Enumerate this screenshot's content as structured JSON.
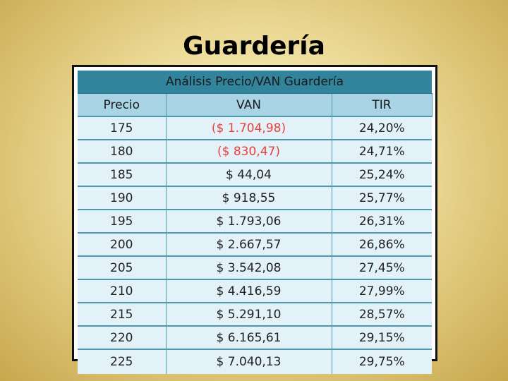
{
  "slide": {
    "title": "Guardería"
  },
  "table": {
    "caption": "Análisis Precio/VAN Guardería",
    "headers": [
      "Precio",
      "VAN",
      "TIR"
    ],
    "rows": [
      {
        "precio": "175",
        "van": "($ 1.704,98)",
        "tir": "24,20%",
        "negative": true
      },
      {
        "precio": "180",
        "van": "($ 830,47)",
        "tir": "24,71%",
        "negative": true
      },
      {
        "precio": "185",
        "van": "$ 44,04",
        "tir": "25,24%",
        "negative": false
      },
      {
        "precio": "190",
        "van": "$ 918,55",
        "tir": "25,77%",
        "negative": false
      },
      {
        "precio": "195",
        "van": "$ 1.793,06",
        "tir": "26,31%",
        "negative": false
      },
      {
        "precio": "200",
        "van": "$ 2.667,57",
        "tir": "26,86%",
        "negative": false
      },
      {
        "precio": "205",
        "van": "$ 3.542,08",
        "tir": "27,45%",
        "negative": false
      },
      {
        "precio": "210",
        "van": "$ 4.416,59",
        "tir": "27,99%",
        "negative": false
      },
      {
        "precio": "215",
        "van": "$ 5.291,10",
        "tir": "28,57%",
        "negative": false
      },
      {
        "precio": "220",
        "van": "$ 6.165,61",
        "tir": "29,15%",
        "negative": false
      },
      {
        "precio": "225",
        "van": "$ 7.040,13",
        "tir": "29,75%",
        "negative": false
      }
    ]
  },
  "colors": {
    "caption_bg": "#31849b",
    "header_bg": "#a9d4e6",
    "row_bg": "#e3f1f8",
    "negative_text": "#e8413b"
  }
}
